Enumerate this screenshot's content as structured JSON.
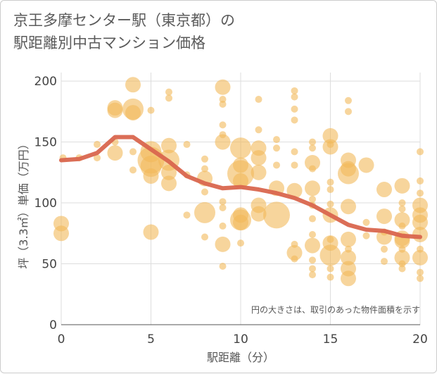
{
  "title": {
    "line1": "京王多摩センター駅（東京都）の",
    "line2": "駅距離別中古マンション価格"
  },
  "note": "円の大きさは、取引のあった物件面積を示す",
  "colors": {
    "bubble": "#f2b95a",
    "trend": "#d9664e",
    "grid": "#dddddd",
    "axis": "#555555"
  },
  "chart_data": {
    "type": "scatter",
    "xlabel": "駅距離（分）",
    "ylabel": "坪（3.3㎡）単価（万円）",
    "xlim": [
      0,
      20
    ],
    "ylim": [
      0,
      207
    ],
    "xticks": [
      "0",
      "5",
      "10",
      "15",
      "20"
    ],
    "yticks": [
      "0",
      "50",
      "100",
      "150",
      "200"
    ],
    "grid": true,
    "trend": {
      "x": [
        0,
        1,
        2,
        3,
        4,
        5,
        6,
        7,
        8,
        9,
        10,
        11,
        12,
        13,
        14,
        15,
        16,
        17,
        18,
        19,
        20
      ],
      "y": [
        135,
        136,
        141,
        154,
        154,
        144,
        134,
        122,
        116,
        112,
        113,
        111,
        108,
        104,
        98,
        90,
        82,
        78,
        77,
        73,
        72
      ]
    },
    "points": [
      {
        "x": 0,
        "y": 83,
        "s": 2
      },
      {
        "x": 0,
        "y": 75,
        "s": 2
      },
      {
        "x": 0.1,
        "y": 137,
        "s": 1
      },
      {
        "x": 1,
        "y": 137,
        "s": 1
      },
      {
        "x": 2,
        "y": 148,
        "s": 1
      },
      {
        "x": 2,
        "y": 137,
        "s": 1
      },
      {
        "x": 3,
        "y": 178,
        "s": 2
      },
      {
        "x": 3,
        "y": 176,
        "s": 2
      },
      {
        "x": 3,
        "y": 150,
        "s": 1
      },
      {
        "x": 3,
        "y": 141,
        "s": 2
      },
      {
        "x": 4,
        "y": 197,
        "s": 2
      },
      {
        "x": 4,
        "y": 177,
        "s": 3
      },
      {
        "x": 4,
        "y": 174,
        "s": 2
      },
      {
        "x": 4,
        "y": 142,
        "s": 1
      },
      {
        "x": 4,
        "y": 127,
        "s": 1
      },
      {
        "x": 5,
        "y": 176,
        "s": 1
      },
      {
        "x": 5,
        "y": 142,
        "s": 3
      },
      {
        "x": 5,
        "y": 135,
        "s": 4
      },
      {
        "x": 5,
        "y": 130,
        "s": 3
      },
      {
        "x": 5,
        "y": 122,
        "s": 2
      },
      {
        "x": 5,
        "y": 76,
        "s": 2
      },
      {
        "x": 6,
        "y": 191,
        "s": 1
      },
      {
        "x": 6,
        "y": 186,
        "s": 1
      },
      {
        "x": 6,
        "y": 147,
        "s": 2
      },
      {
        "x": 6,
        "y": 135,
        "s": 3
      },
      {
        "x": 6,
        "y": 125,
        "s": 2
      },
      {
        "x": 6,
        "y": 116,
        "s": 2
      },
      {
        "x": 7,
        "y": 148,
        "s": 1
      },
      {
        "x": 7,
        "y": 123,
        "s": 1
      },
      {
        "x": 7,
        "y": 90,
        "s": 1
      },
      {
        "x": 8,
        "y": 136,
        "s": 1
      },
      {
        "x": 8,
        "y": 128,
        "s": 1
      },
      {
        "x": 8,
        "y": 120,
        "s": 2
      },
      {
        "x": 8,
        "y": 109,
        "s": 1
      },
      {
        "x": 8,
        "y": 92,
        "s": 3
      },
      {
        "x": 8,
        "y": 72,
        "s": 1
      },
      {
        "x": 9,
        "y": 195,
        "s": 2
      },
      {
        "x": 9,
        "y": 185,
        "s": 1
      },
      {
        "x": 9,
        "y": 181,
        "s": 1
      },
      {
        "x": 9,
        "y": 164,
        "s": 1
      },
      {
        "x": 9,
        "y": 156,
        "s": 1
      },
      {
        "x": 9,
        "y": 150,
        "s": 2
      },
      {
        "x": 9,
        "y": 101,
        "s": 1
      },
      {
        "x": 9,
        "y": 96,
        "s": 1
      },
      {
        "x": 9,
        "y": 81,
        "s": 1
      },
      {
        "x": 9,
        "y": 66,
        "s": 2
      },
      {
        "x": 9,
        "y": 48,
        "s": 1
      },
      {
        "x": 10,
        "y": 145,
        "s": 3
      },
      {
        "x": 10,
        "y": 131,
        "s": 2
      },
      {
        "x": 10,
        "y": 124,
        "s": 4
      },
      {
        "x": 10,
        "y": 118,
        "s": 2
      },
      {
        "x": 10,
        "y": 90,
        "s": 2
      },
      {
        "x": 10,
        "y": 86,
        "s": 3
      },
      {
        "x": 10,
        "y": 84,
        "s": 2
      },
      {
        "x": 10,
        "y": 67,
        "s": 1
      },
      {
        "x": 11,
        "y": 185,
        "s": 1
      },
      {
        "x": 11,
        "y": 160,
        "s": 1
      },
      {
        "x": 11,
        "y": 145,
        "s": 2
      },
      {
        "x": 11,
        "y": 137,
        "s": 2
      },
      {
        "x": 11,
        "y": 125,
        "s": 2
      },
      {
        "x": 11,
        "y": 98,
        "s": 2
      },
      {
        "x": 11,
        "y": 91,
        "s": 2
      },
      {
        "x": 12,
        "y": 152,
        "s": 1
      },
      {
        "x": 12,
        "y": 145,
        "s": 1
      },
      {
        "x": 12,
        "y": 131,
        "s": 1
      },
      {
        "x": 12,
        "y": 112,
        "s": 2
      },
      {
        "x": 12,
        "y": 90,
        "s": 4
      },
      {
        "x": 13,
        "y": 192,
        "s": 1
      },
      {
        "x": 13,
        "y": 187,
        "s": 1
      },
      {
        "x": 13,
        "y": 177,
        "s": 1
      },
      {
        "x": 13,
        "y": 168,
        "s": 1
      },
      {
        "x": 13,
        "y": 142,
        "s": 1
      },
      {
        "x": 13,
        "y": 131,
        "s": 1
      },
      {
        "x": 13,
        "y": 110,
        "s": 2
      },
      {
        "x": 13,
        "y": 66,
        "s": 1
      },
      {
        "x": 13,
        "y": 59,
        "s": 2
      },
      {
        "x": 13,
        "y": 54,
        "s": 1
      },
      {
        "x": 14,
        "y": 150,
        "s": 1
      },
      {
        "x": 14,
        "y": 145,
        "s": 1
      },
      {
        "x": 14,
        "y": 133,
        "s": 2
      },
      {
        "x": 14,
        "y": 128,
        "s": 1
      },
      {
        "x": 14,
        "y": 112,
        "s": 2
      },
      {
        "x": 14,
        "y": 103,
        "s": 1
      },
      {
        "x": 14,
        "y": 98,
        "s": 1
      },
      {
        "x": 14,
        "y": 87,
        "s": 1
      },
      {
        "x": 14,
        "y": 74,
        "s": 1
      },
      {
        "x": 14,
        "y": 65,
        "s": 2
      },
      {
        "x": 14,
        "y": 53,
        "s": 1
      },
      {
        "x": 14,
        "y": 46,
        "s": 1
      },
      {
        "x": 14,
        "y": 41,
        "s": 1
      },
      {
        "x": 15,
        "y": 155,
        "s": 2
      },
      {
        "x": 15,
        "y": 148,
        "s": 1
      },
      {
        "x": 15,
        "y": 146,
        "s": 2
      },
      {
        "x": 15,
        "y": 117,
        "s": 1
      },
      {
        "x": 15,
        "y": 111,
        "s": 1
      },
      {
        "x": 15,
        "y": 99,
        "s": 1
      },
      {
        "x": 15,
        "y": 90,
        "s": 2
      },
      {
        "x": 15,
        "y": 70,
        "s": 1
      },
      {
        "x": 15,
        "y": 67,
        "s": 2
      },
      {
        "x": 15,
        "y": 57,
        "s": 3
      },
      {
        "x": 15,
        "y": 46,
        "s": 1
      },
      {
        "x": 15,
        "y": 39,
        "s": 1
      },
      {
        "x": 16,
        "y": 184,
        "s": 1
      },
      {
        "x": 16,
        "y": 175,
        "s": 1
      },
      {
        "x": 16,
        "y": 135,
        "s": 2
      },
      {
        "x": 16,
        "y": 128,
        "s": 2
      },
      {
        "x": 16,
        "y": 124,
        "s": 3
      },
      {
        "x": 16,
        "y": 97,
        "s": 2
      },
      {
        "x": 16,
        "y": 70,
        "s": 2
      },
      {
        "x": 16,
        "y": 62,
        "s": 1
      },
      {
        "x": 16,
        "y": 55,
        "s": 2
      },
      {
        "x": 16,
        "y": 46,
        "s": 2
      },
      {
        "x": 16,
        "y": 38,
        "s": 2
      },
      {
        "x": 17,
        "y": 131,
        "s": 2
      },
      {
        "x": 17,
        "y": 84,
        "s": 1
      },
      {
        "x": 17,
        "y": 73,
        "s": 1
      },
      {
        "x": 18,
        "y": 111,
        "s": 2
      },
      {
        "x": 18,
        "y": 89,
        "s": 2
      },
      {
        "x": 18,
        "y": 76,
        "s": 1
      },
      {
        "x": 18,
        "y": 72,
        "s": 2
      },
      {
        "x": 18,
        "y": 62,
        "s": 1
      },
      {
        "x": 18,
        "y": 52,
        "s": 1
      },
      {
        "x": 19,
        "y": 114,
        "s": 2
      },
      {
        "x": 19,
        "y": 100,
        "s": 1
      },
      {
        "x": 19,
        "y": 95,
        "s": 1
      },
      {
        "x": 19,
        "y": 86,
        "s": 2
      },
      {
        "x": 19,
        "y": 81,
        "s": 1
      },
      {
        "x": 19,
        "y": 71,
        "s": 2
      },
      {
        "x": 19,
        "y": 69,
        "s": 2
      },
      {
        "x": 19,
        "y": 62,
        "s": 1
      },
      {
        "x": 19,
        "y": 55,
        "s": 2
      },
      {
        "x": 19,
        "y": 50,
        "s": 1
      },
      {
        "x": 19,
        "y": 46,
        "s": 1
      },
      {
        "x": 20,
        "y": 142,
        "s": 1
      },
      {
        "x": 20,
        "y": 118,
        "s": 1
      },
      {
        "x": 20,
        "y": 108,
        "s": 1
      },
      {
        "x": 20,
        "y": 98,
        "s": 2
      },
      {
        "x": 20,
        "y": 90,
        "s": 2
      },
      {
        "x": 20,
        "y": 84,
        "s": 2
      },
      {
        "x": 20,
        "y": 74,
        "s": 2
      },
      {
        "x": 20,
        "y": 62,
        "s": 1
      },
      {
        "x": 20,
        "y": 55,
        "s": 2
      },
      {
        "x": 20,
        "y": 43,
        "s": 1
      },
      {
        "x": 20,
        "y": 38,
        "s": 1
      }
    ]
  }
}
